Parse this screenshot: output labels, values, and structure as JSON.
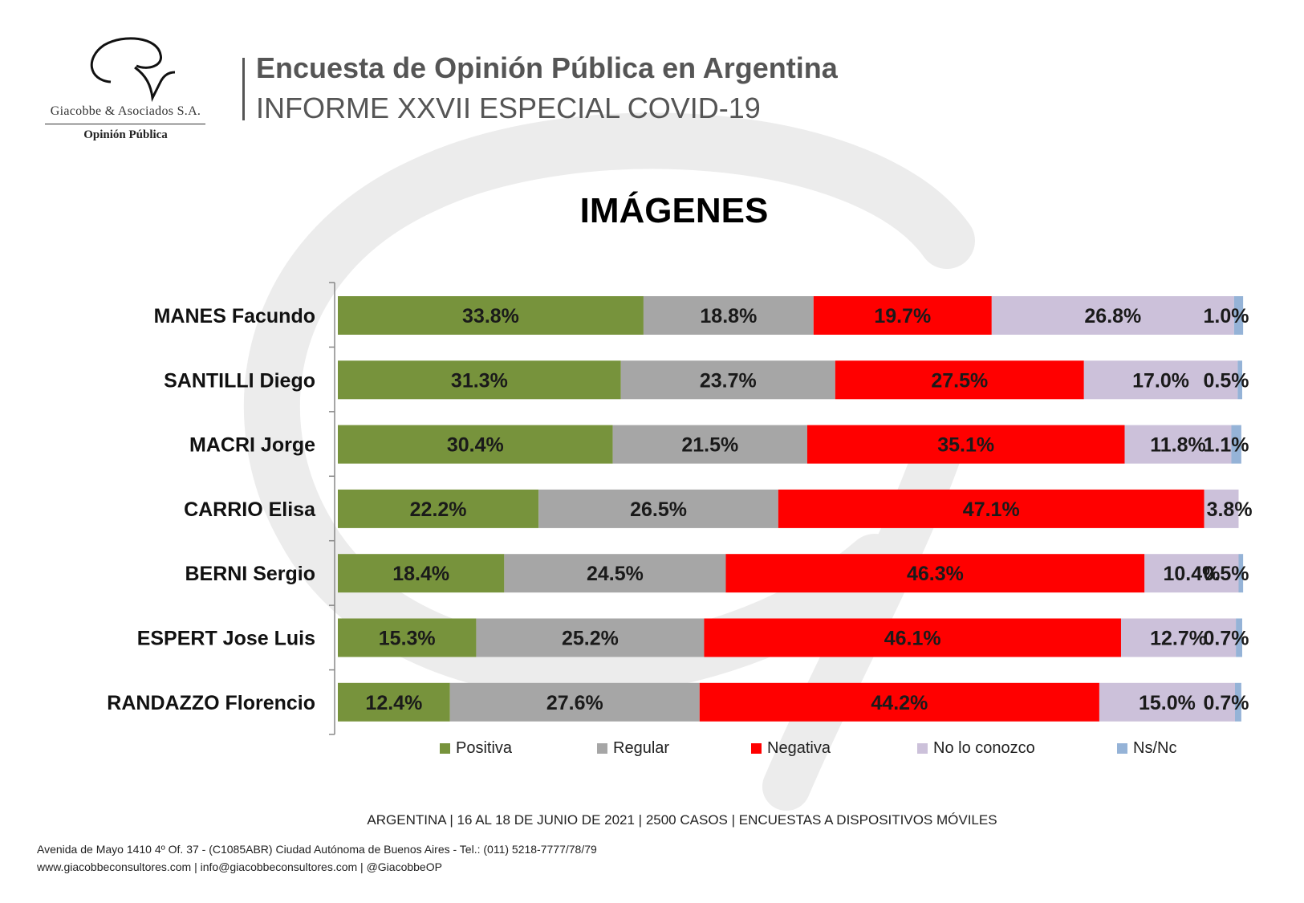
{
  "header": {
    "company": "Giacobbe & Asociados S.A.",
    "division": "Opinión Pública",
    "title": "Encuesta de Opinión Pública en Argentina",
    "subtitle": "INFORME XXVII ESPECIAL COVID-19"
  },
  "chart_data": {
    "type": "bar",
    "orientation": "horizontal",
    "stacked": true,
    "title": "IMÁGENES",
    "categories": [
      "MANES Facundo",
      "SANTILLI Diego",
      "MACRI Jorge",
      "CARRIO Elisa",
      "BERNI Sergio",
      "ESPERT Jose Luis",
      "RANDAZZO Florencio"
    ],
    "series": [
      {
        "name": "Positiva",
        "color": "#77933C",
        "label_color": "#1a1a1a",
        "values": [
          33.8,
          31.3,
          30.4,
          22.2,
          18.4,
          15.3,
          12.4
        ]
      },
      {
        "name": "Regular",
        "color": "#A6A6A6",
        "label_color": "#1a1a1a",
        "values": [
          18.8,
          23.7,
          21.5,
          26.5,
          24.5,
          25.2,
          27.6
        ]
      },
      {
        "name": "Negativa",
        "color": "#FF0000",
        "label_color": "#1a1a1a",
        "values": [
          19.7,
          27.5,
          35.1,
          47.1,
          46.3,
          46.1,
          44.2
        ]
      },
      {
        "name": "No lo conozco",
        "color": "#CCC1DA",
        "label_color": "#1a1a1a",
        "values": [
          26.8,
          17.0,
          11.8,
          3.8,
          10.4,
          12.7,
          15.0
        ]
      },
      {
        "name": "Ns/Nc",
        "color": "#95B3D7",
        "label_color": "#1a1a1a",
        "values": [
          1.0,
          0.5,
          1.1,
          null,
          0.5,
          0.7,
          0.7
        ]
      }
    ],
    "value_suffix": "%",
    "xlim": [
      0,
      100
    ],
    "legend_position": "bottom",
    "grid": false
  },
  "footer": {
    "main": "ARGENTINA | 16 AL 18 DE JUNIO DE 2021 | 2500 CASOS | ENCUESTAS A DISPOSITIVOS MÓVILES",
    "address": "Avenida de Mayo 1410 4º Of. 37 - (C1085ABR) Ciudad Autónoma de Buenos Aires - Tel.: (011) 5218-7777/78/79",
    "web": "www.giacobbeconsultores.com | info@giacobbeconsultores.com | @GiacobbeOP"
  }
}
